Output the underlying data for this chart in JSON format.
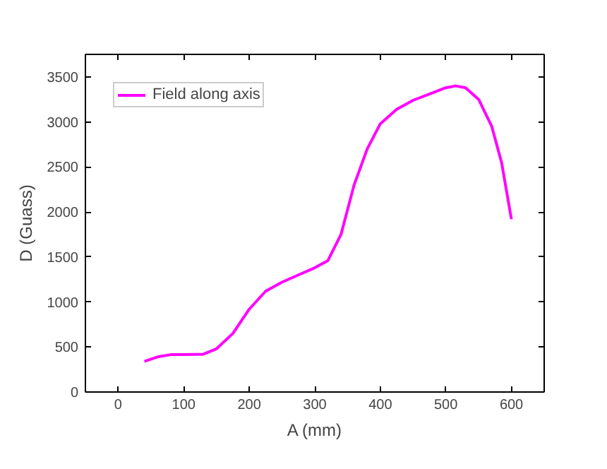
{
  "chart_data": {
    "type": "line",
    "xlabel": "A (mm)",
    "ylabel": "D (Guass)",
    "xlim": [
      -50,
      650
    ],
    "ylim": [
      0,
      3750
    ],
    "xticks": [
      0,
      100,
      200,
      300,
      400,
      500,
      600
    ],
    "yticks": [
      0,
      500,
      1000,
      1500,
      2000,
      2500,
      3000,
      3500
    ],
    "grid": false,
    "legend": "top left",
    "marker": "none",
    "line_style": "solid",
    "series": [
      {
        "name": "Field along axis",
        "color": "#ff00ff",
        "x": [
          40,
          60,
          80,
          100,
          130,
          150,
          175,
          200,
          225,
          250,
          275,
          300,
          320,
          340,
          360,
          380,
          400,
          425,
          450,
          475,
          500,
          515,
          530,
          550,
          570,
          585,
          600
        ],
        "values": [
          340,
          390,
          415,
          415,
          420,
          480,
          650,
          920,
          1120,
          1220,
          1300,
          1380,
          1460,
          1750,
          2300,
          2700,
          2980,
          3140,
          3240,
          3310,
          3380,
          3400,
          3380,
          3250,
          2950,
          2550,
          1920
        ]
      }
    ]
  }
}
